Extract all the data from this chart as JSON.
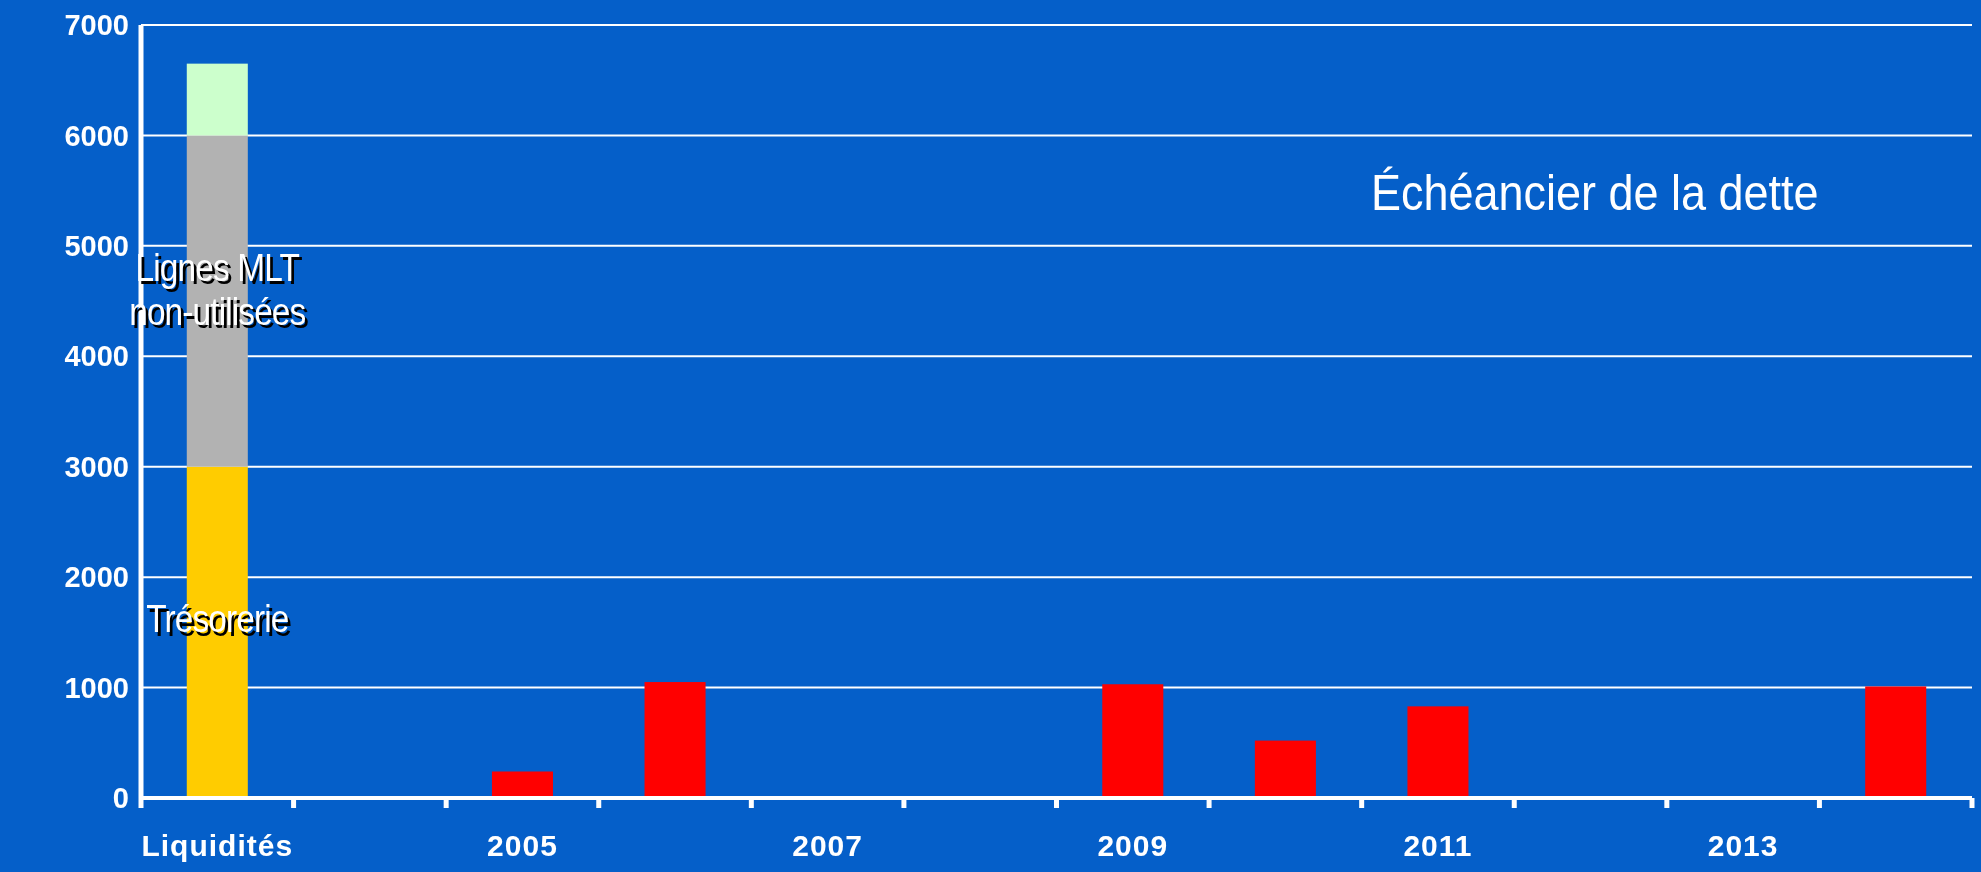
{
  "chart_data": {
    "type": "bar",
    "title": "Échéancier de la dette",
    "stacked": true,
    "grid": "y",
    "categories": [
      "Liquidités",
      null,
      "2005",
      null,
      "2007",
      null,
      "2009",
      null,
      "2011",
      null,
      "2013",
      null
    ],
    "series": [
      {
        "name": "Trésorerie",
        "color": "#ffcc00",
        "values": [
          3000,
          null,
          null,
          null,
          null,
          null,
          null,
          null,
          null,
          null,
          null,
          null
        ]
      },
      {
        "name": "Lignes MLT non-utilisées",
        "color": "#b2b2b2",
        "values": [
          3000,
          null,
          null,
          null,
          null,
          null,
          null,
          null,
          null,
          null,
          null,
          null
        ]
      },
      {
        "color": "#ccffcc",
        "values": [
          650,
          null,
          null,
          null,
          null,
          null,
          null,
          null,
          null,
          null,
          null,
          null
        ]
      },
      {
        "color": "#ff0000",
        "values": [
          null,
          null,
          240,
          1050,
          null,
          null,
          1030,
          520,
          830,
          null,
          null,
          1010
        ]
      }
    ],
    "ylim": [
      0,
      7000
    ],
    "yticks": [
      0,
      1000,
      2000,
      3000,
      4000,
      5000,
      6000,
      7000
    ]
  }
}
